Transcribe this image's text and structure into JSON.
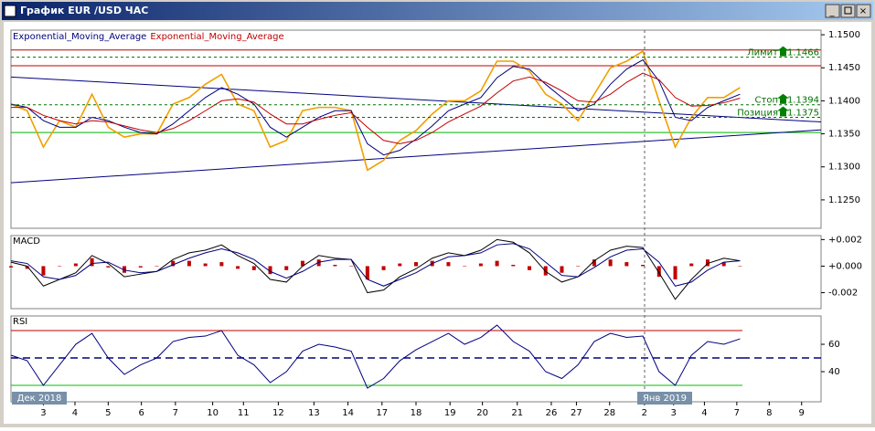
{
  "window_title": "График EUR /USD ЧАС",
  "period_labels": [
    "Дек 2018",
    "Янв 2019"
  ],
  "chart_data": [
    {
      "type": "line",
      "title": "",
      "xlim": [
        0,
        100
      ],
      "x": [
        0,
        2,
        4,
        6,
        8,
        10,
        12,
        14,
        16,
        18,
        20,
        22,
        24,
        26,
        28,
        30,
        32,
        34,
        36,
        38,
        40,
        42,
        44,
        46,
        48,
        50,
        52,
        54,
        56,
        58,
        60,
        62,
        64,
        66,
        68,
        70,
        72,
        74,
        76,
        78,
        80,
        82,
        84,
        86,
        88,
        90
      ],
      "ylim": [
        1.1207,
        1.1507
      ],
      "yticks": [
        {
          "value": 1.15,
          "label": "1.1500"
        },
        {
          "value": 1.145,
          "label": "1.1450"
        },
        {
          "value": 1.14,
          "label": "1.1400"
        },
        {
          "value": 1.135,
          "label": "1.1350"
        },
        {
          "value": 1.13,
          "label": "1.1300"
        },
        {
          "value": 1.125,
          "label": "1.1250"
        }
      ],
      "series": [
        {
          "color": "#f0a000",
          "values": [
            1.1395,
            1.1385,
            1.133,
            1.137,
            1.136,
            1.141,
            1.136,
            1.1345,
            1.135,
            1.135,
            1.1395,
            1.1405,
            1.1425,
            1.144,
            1.1395,
            1.1385,
            1.133,
            1.134,
            1.1385,
            1.139,
            1.139,
            1.1385,
            1.1295,
            1.131,
            1.134,
            1.1355,
            1.138,
            1.14,
            1.14,
            1.1415,
            1.146,
            1.146,
            1.1445,
            1.141,
            1.1395,
            1.137,
            1.141,
            1.145,
            1.146,
            1.1475,
            1.14,
            1.133,
            1.1375,
            1.1405,
            1.1405,
            1.142
          ]
        },
        {
          "name": "Exponential_Moving_Average",
          "color": "#00007f",
          "values": [
            1.1395,
            1.139,
            1.137,
            1.136,
            1.136,
            1.1375,
            1.137,
            1.136,
            1.1352,
            1.135,
            1.1365,
            1.1385,
            1.1405,
            1.142,
            1.141,
            1.1395,
            1.136,
            1.1345,
            1.136,
            1.1375,
            1.1385,
            1.1385,
            1.1335,
            1.1318,
            1.1325,
            1.1342,
            1.1362,
            1.1385,
            1.1395,
            1.1405,
            1.1435,
            1.1452,
            1.1448,
            1.1425,
            1.1405,
            1.1385,
            1.1395,
            1.1425,
            1.1448,
            1.1462,
            1.143,
            1.1375,
            1.137,
            1.139,
            1.14,
            1.141
          ]
        },
        {
          "name": "Exponential_Moving_Average",
          "color": "#c00000",
          "values": [
            1.139,
            1.139,
            1.1378,
            1.137,
            1.1365,
            1.137,
            1.1368,
            1.1362,
            1.1356,
            1.1352,
            1.1358,
            1.137,
            1.1385,
            1.14,
            1.1403,
            1.1398,
            1.138,
            1.1365,
            1.1365,
            1.1372,
            1.1378,
            1.1382,
            1.136,
            1.134,
            1.1335,
            1.134,
            1.1352,
            1.1368,
            1.138,
            1.1392,
            1.1412,
            1.143,
            1.1436,
            1.1428,
            1.1415,
            1.14,
            1.1398,
            1.141,
            1.1428,
            1.1442,
            1.1432,
            1.1405,
            1.1392,
            1.1393,
            1.1397,
            1.1404
          ]
        }
      ],
      "hlines": [
        {
          "value": 1.1477,
          "color": "#c00000"
        },
        {
          "value": 1.1453,
          "color": "#c00000"
        },
        {
          "value": 1.1352,
          "color": "#00b000"
        }
      ],
      "trendlines": [
        {
          "values": [
            1.1436,
            1.1368
          ],
          "color": "#00007f"
        },
        {
          "values": [
            1.1276,
            1.1356
          ],
          "color": "#00007f"
        }
      ],
      "levels": [
        {
          "name": "Лимит",
          "value": 1.1466
        },
        {
          "name": "Стоп",
          "value": 1.1394
        },
        {
          "name": "Позиция",
          "value": 1.1375
        }
      ],
      "level_color": "#007000"
    },
    {
      "type": "bar",
      "title": "MACD",
      "xlim": [
        0,
        100
      ],
      "x": [
        0,
        2,
        4,
        6,
        8,
        10,
        12,
        14,
        16,
        18,
        20,
        22,
        24,
        26,
        28,
        30,
        32,
        34,
        36,
        38,
        40,
        42,
        44,
        46,
        48,
        50,
        52,
        54,
        56,
        58,
        60,
        62,
        64,
        66,
        68,
        70,
        72,
        74,
        76,
        78,
        80,
        82,
        84,
        86,
        88,
        90
      ],
      "ylim": [
        -0.0032,
        0.0023
      ],
      "yticks": [
        {
          "value": 0.002,
          "label": "+0.002"
        },
        {
          "value": 0,
          "label": "+0.000"
        },
        {
          "value": -0.002,
          "label": "-0.002"
        }
      ],
      "color": "#c00000",
      "values": [
        -0.0001,
        -0.0002,
        -0.0007,
        0,
        0.0002,
        0.0006,
        -0.0001,
        -0.0005,
        -0.0001,
        0,
        0.0004,
        0.0004,
        0.0002,
        0.0003,
        -0.0002,
        -0.0003,
        -0.0006,
        -0.0003,
        0.0004,
        0.0005,
        0.0001,
        0,
        -0.001,
        -0.0003,
        0.0002,
        0.0003,
        0.0004,
        0.0003,
        0,
        0.0002,
        0.0004,
        0.0001,
        -0.0003,
        -0.0007,
        -0.0005,
        0,
        0.0005,
        0.0005,
        0.0003,
        0.0001,
        -0.0008,
        -0.001,
        0.0002,
        0.0005,
        0.0003,
        0
      ],
      "series": [
        {
          "color": "#000000",
          "values": [
            0.0003,
            0,
            -0.0015,
            -0.001,
            -0.0005,
            0.0008,
            0.0002,
            -0.0008,
            -0.0006,
            -0.0004,
            0.0005,
            0.001,
            0.0012,
            0.0016,
            0.0008,
            0.0002,
            -0.001,
            -0.0012,
            0,
            0.0008,
            0.0006,
            0.0005,
            -0.002,
            -0.0018,
            -0.0008,
            -0.0002,
            0.0006,
            0.001,
            0.0008,
            0.0012,
            0.002,
            0.0018,
            0.001,
            -0.0004,
            -0.0012,
            -0.0008,
            0.0004,
            0.0012,
            0.0015,
            0.0014,
            -0.0005,
            -0.0025,
            -0.001,
            0.0002,
            0.0006,
            0.0004
          ]
        },
        {
          "color": "#00007f",
          "values": [
            0.0004,
            0.0002,
            -0.0008,
            -0.001,
            -0.0007,
            0.0002,
            0.0003,
            -0.0003,
            -0.0005,
            -0.0004,
            0.0001,
            0.0006,
            0.001,
            0.0013,
            0.001,
            0.0005,
            -0.0004,
            -0.0009,
            -0.0004,
            0.0003,
            0.0005,
            0.0005,
            -0.001,
            -0.0015,
            -0.001,
            -0.0005,
            0.0002,
            0.0007,
            0.0008,
            0.001,
            0.0016,
            0.0017,
            0.0013,
            0.0003,
            -0.0007,
            -0.0008,
            -0.0001,
            0.0007,
            0.0012,
            0.0013,
            0.0003,
            -0.0015,
            -0.0012,
            -0.0003,
            0.0003,
            0.0004
          ]
        }
      ]
    },
    {
      "type": "line",
      "title": "RSI",
      "xlim": [
        0,
        100
      ],
      "x": [
        0,
        2,
        4,
        6,
        8,
        10,
        12,
        14,
        16,
        18,
        20,
        22,
        24,
        26,
        28,
        30,
        32,
        34,
        36,
        38,
        40,
        42,
        44,
        46,
        48,
        50,
        52,
        54,
        56,
        58,
        60,
        62,
        64,
        66,
        68,
        70,
        72,
        74,
        76,
        78,
        80,
        82,
        84,
        86,
        88,
        90
      ],
      "ylim": [
        18,
        80.7
      ],
      "yticks": [
        60,
        40
      ],
      "series": [
        {
          "color": "#00007f",
          "values": [
            52,
            48,
            30,
            45,
            60,
            68,
            50,
            38,
            45,
            50,
            62,
            65,
            66,
            70,
            52,
            45,
            32,
            40,
            55,
            60,
            58,
            55,
            28,
            35,
            48,
            56,
            62,
            68,
            60,
            65,
            74,
            62,
            55,
            40,
            35,
            45,
            62,
            68,
            65,
            66,
            40,
            30,
            52,
            62,
            60,
            64
          ]
        }
      ],
      "hlines": [
        {
          "value": 70,
          "color": "#c00000"
        },
        {
          "value": 50,
          "color": "#00007f",
          "dash": true
        },
        {
          "value": 30,
          "color": "#00c000"
        }
      ],
      "xticks": [
        {
          "value": 4,
          "label": "3"
        },
        {
          "value": 7.9,
          "label": "4"
        },
        {
          "value": 12,
          "label": "5"
        },
        {
          "value": 16.1,
          "label": "6"
        },
        {
          "value": 20.3,
          "label": "7"
        },
        {
          "value": 24.9,
          "label": "10"
        },
        {
          "value": 28.7,
          "label": "11"
        },
        {
          "value": 33,
          "label": "12"
        },
        {
          "value": 37.4,
          "label": "13"
        },
        {
          "value": 41.6,
          "label": "14"
        },
        {
          "value": 45.8,
          "label": "17"
        },
        {
          "value": 50,
          "label": "18"
        },
        {
          "value": 54.2,
          "label": "19"
        },
        {
          "value": 58.2,
          "label": "20"
        },
        {
          "value": 62.5,
          "label": "21"
        },
        {
          "value": 66.7,
          "label": "26"
        },
        {
          "value": 69.8,
          "label": "27"
        },
        {
          "value": 73.9,
          "label": "28"
        },
        {
          "value": 78.2,
          "label": "2"
        },
        {
          "value": 81.8,
          "label": "3"
        },
        {
          "value": 85.6,
          "label": "4"
        },
        {
          "value": 89.6,
          "label": "7"
        },
        {
          "value": 93.6,
          "label": "8"
        },
        {
          "value": 97.6,
          "label": "9"
        }
      ]
    }
  ]
}
